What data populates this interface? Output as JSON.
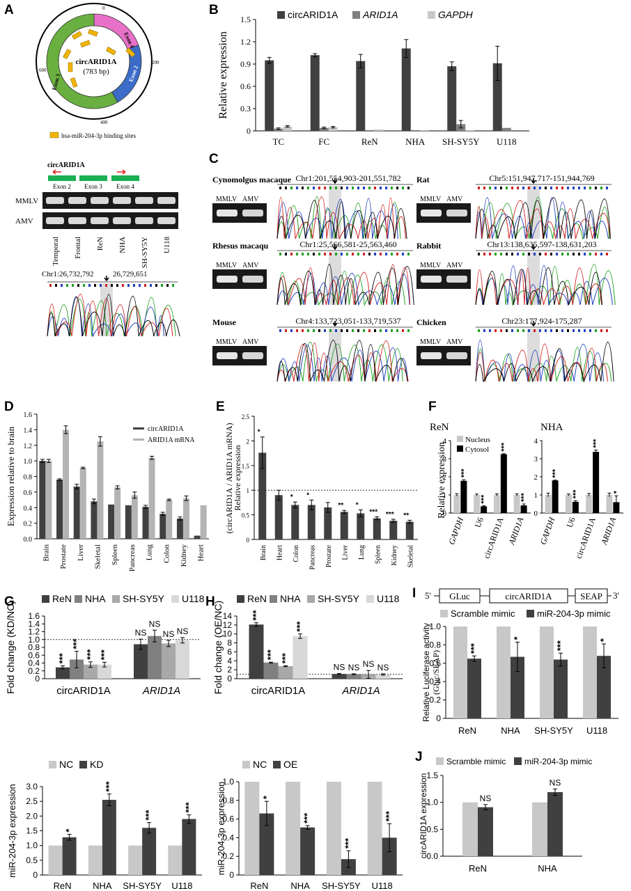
{
  "panels": {
    "A": {
      "letter": "A",
      "circle": {
        "title": "circARID1A",
        "subtitle": "(783 bp)",
        "ticks": [
          "0",
          "200",
          "400",
          "600"
        ],
        "exons": [
          "Exon 2",
          "Exon 3",
          "Exon 4"
        ],
        "legend": "hsa-miR-204-3p binding sites"
      },
      "gel": {
        "title": "circARID1A",
        "exons": [
          "Exon 2",
          "Exon 3",
          "Exon 4"
        ],
        "rows": [
          "MMLV",
          "AMV"
        ],
        "lanes": [
          "Temporal",
          "Frontal",
          "ReN",
          "NHA",
          "SH-SY5Y",
          "U118"
        ]
      },
      "chrom": {
        "label": "Chr1:26,732,792",
        "label2": "26,729,651"
      }
    },
    "B": {
      "letter": "B"
    },
    "C": {
      "letter": "C",
      "species": [
        {
          "name": "Cynomolgus macaque",
          "coords": "Chr1:201,554,903-201,551,782"
        },
        {
          "name": "Rhesus macaqu",
          "coords": "Chr1:25,566,581-25,563,460"
        },
        {
          "name": "Mouse",
          "coords": "Chr4:133,723,051-133,719,537"
        },
        {
          "name": "Rat",
          "coords": "Chr5:151,947,717-151,944,769"
        },
        {
          "name": "Rabbit",
          "coords": "Chr13:138,635,597-138,631,203"
        },
        {
          "name": "Chicken",
          "coords": "Chr23:177,924-175,287"
        }
      ],
      "gel_labels": [
        "MMLV",
        "AMV"
      ]
    },
    "D": {
      "letter": "D"
    },
    "E": {
      "letter": "E"
    },
    "F": {
      "letter": "F"
    },
    "G": {
      "letter": "G"
    },
    "H": {
      "letter": "H"
    },
    "I": {
      "letter": "I",
      "construct": [
        "5'",
        "GLuc",
        "circARID1A",
        "SEAP",
        "3'"
      ]
    },
    "J": {
      "letter": "J"
    }
  },
  "colors": {
    "dark": "#404040",
    "mid": "#808080",
    "light": "#c8c8c8",
    "black": "#000000"
  },
  "chart_data": [
    {
      "id": "B",
      "type": "bar",
      "categories": [
        "TC",
        "FC",
        "ReN",
        "NHA",
        "SH-SY5Y",
        "U118"
      ],
      "series": [
        {
          "name": "circARID1A",
          "values": [
            0.95,
            1.02,
            0.94,
            1.11,
            0.87,
            0.91
          ],
          "err": [
            0.04,
            0.02,
            0.09,
            0.12,
            0.06,
            0.23
          ],
          "color": "#404040"
        },
        {
          "name": "ARID1A",
          "values": [
            0.03,
            0.04,
            0.01,
            0.01,
            0.09,
            0.04
          ],
          "err": [
            0.01,
            0.01,
            0.0,
            0.0,
            0.05,
            0.0
          ],
          "color": "#808080",
          "italic": true
        },
        {
          "name": "GAPDH",
          "values": [
            0.06,
            0.05,
            0.02,
            0.01,
            0.01,
            0.0
          ],
          "err": [
            0.01,
            0.01,
            0.0,
            0.0,
            0.0,
            0.0
          ],
          "color": "#c8c8c8",
          "italic": true
        }
      ],
      "ylabel": "Relative expression",
      "ylim": [
        0,
        1.5
      ],
      "yticks": [
        "0",
        "0.3",
        "0.6",
        "0.9",
        "1.2",
        "1.5"
      ],
      "legend": "top"
    },
    {
      "id": "D",
      "type": "bar",
      "categories": [
        "Brain",
        "Prostate",
        "Liver",
        "Skeletal",
        "Spleen",
        "Pancreas",
        "Lung",
        "Colon",
        "Kidney",
        "Heart"
      ],
      "series": [
        {
          "name": "circARID1A",
          "values": [
            1.0,
            0.76,
            0.67,
            0.48,
            0.44,
            0.43,
            0.41,
            0.32,
            0.26,
            0.04
          ],
          "err": [
            0.02,
            0.01,
            0.03,
            0.03,
            0.0,
            0.0,
            0.02,
            0.02,
            0.02,
            0.0
          ],
          "color": "#404040"
        },
        {
          "name": "ARID1A mRNA",
          "values": [
            1.0,
            1.4,
            0.91,
            1.25,
            0.66,
            0.56,
            1.04,
            0.5,
            0.52,
            0.43
          ],
          "err": [
            0.02,
            0.05,
            0.01,
            0.06,
            0.02,
            0.04,
            0.02,
            0.01,
            0.03,
            0.0
          ],
          "color": "#b4b4b4"
        }
      ],
      "ylabel": "Expression relative to brain",
      "ylim": [
        0,
        1.6
      ],
      "yticks": [
        "0.0",
        "0.2",
        "0.4",
        "0.6",
        "0.8",
        "1.0",
        "1.2",
        "1.4",
        "1.6"
      ],
      "legend": "top-right"
    },
    {
      "id": "E",
      "type": "bar",
      "categories": [
        "Brain",
        "Heart",
        "Colon",
        "Pancreas",
        "Prostate",
        "Liver",
        "Lung",
        "Spleen",
        "Kidney",
        "Skeletal"
      ],
      "series": [
        {
          "name": "",
          "values": [
            1.76,
            0.9,
            0.7,
            0.7,
            0.65,
            0.56,
            0.53,
            0.43,
            0.38,
            0.36
          ],
          "err": [
            0.32,
            0.1,
            0.06,
            0.1,
            0.1,
            0.03,
            0.07,
            0.03,
            0.03,
            0.03
          ],
          "color": "#404040"
        }
      ],
      "stars": [
        "*",
        "",
        "*",
        "*",
        "",
        "**",
        "*",
        "***",
        "***",
        "**"
      ],
      "ylabel": "Relative expression",
      "ylabel2": "(circARID1A / ARID1A mRNA)",
      "ylim": [
        0,
        2.5
      ],
      "yticks": [
        "0",
        "0.5",
        "1",
        "1.5",
        "2",
        "2.5"
      ],
      "refline": 1.0
    },
    {
      "id": "F",
      "type": "bar",
      "categories": [
        "GAPDH",
        "U6",
        "circARID1A",
        "ARID1A"
      ],
      "groups": [
        {
          "name": "ReN",
          "nucleus": [
            1.0,
            1.0,
            1.0,
            1.0
          ],
          "cytosol": [
            1.78,
            0.37,
            3.25,
            0.42
          ],
          "nerr": [
            0.07,
            0.05,
            0.06,
            0.06
          ],
          "cerr": [
            0.06,
            0.03,
            0.03,
            0.08
          ],
          "stars": [
            "***",
            "***",
            "***",
            "***"
          ]
        },
        {
          "name": "NHA",
          "nucleus": [
            1.0,
            1.0,
            1.0,
            1.0
          ],
          "cytosol": [
            1.8,
            0.62,
            3.38,
            0.6
          ],
          "nerr": [
            0.1,
            0.05,
            0.08,
            0.1
          ],
          "cerr": [
            0.02,
            0.06,
            0.1,
            0.35
          ],
          "stars": [
            "***",
            "***",
            "***",
            "*"
          ]
        }
      ],
      "series_names": [
        "Nucleus",
        "Cytosol"
      ],
      "ylabel": "Relative expression",
      "ylim": [
        0,
        4
      ],
      "yticks": [
        "0",
        "1",
        "2",
        "3",
        "4"
      ]
    },
    {
      "id": "G1",
      "type": "bar",
      "categories": [
        "circARID1A",
        "ARID1A"
      ],
      "series": [
        {
          "name": "ReN",
          "values": [
            0.29,
            0.88
          ],
          "err": [
            0.04,
            0.13
          ],
          "color": "#404040"
        },
        {
          "name": "NHA",
          "values": [
            0.49,
            1.09
          ],
          "err": [
            0.21,
            0.15
          ],
          "color": "#808080"
        },
        {
          "name": "SH-SY5Y",
          "values": [
            0.36,
            0.9
          ],
          "err": [
            0.07,
            0.08
          ],
          "color": "#a8a8a8"
        },
        {
          "name": "U118",
          "values": [
            0.36,
            0.98
          ],
          "err": [
            0.06,
            0.07
          ],
          "color": "#d8d8d8"
        }
      ],
      "stars": [
        [
          "***",
          "***",
          "***",
          "***"
        ],
        [
          "NS",
          "NS",
          "NS",
          "NS"
        ]
      ],
      "ylabel": "Fold change (KD/NC)",
      "ylim": [
        0,
        1.6
      ],
      "yticks": [
        "0",
        "0.2",
        "0.4",
        "0.6",
        "0.8",
        "1.0",
        "1.2",
        "1.4",
        "1.6"
      ],
      "refline": 1.0
    },
    {
      "id": "H1",
      "type": "bar",
      "categories": [
        "circARID1A",
        "ARID1A"
      ],
      "series": [
        {
          "name": "ReN",
          "values": [
            12.1,
            1.05
          ],
          "err": [
            0.4,
            0.1
          ],
          "color": "#404040"
        },
        {
          "name": "NHA",
          "values": [
            3.6,
            1.0
          ],
          "err": [
            0.1,
            0.1
          ],
          "color": "#808080"
        },
        {
          "name": "SH-SY5Y",
          "values": [
            2.8,
            0.95
          ],
          "err": [
            0.1,
            0.9
          ],
          "color": "#a8a8a8"
        },
        {
          "name": "U118",
          "values": [
            9.5,
            0.95
          ],
          "err": [
            0.5,
            0.15
          ],
          "color": "#d8d8d8"
        }
      ],
      "stars": [
        [
          "***",
          "***",
          "***",
          "***"
        ],
        [
          "NS",
          "NS",
          "NS",
          "NS"
        ]
      ],
      "ylabel": "Fold change (OE/NC)",
      "ylim": [
        0,
        14
      ],
      "yticks": [
        "0",
        "2",
        "4",
        "6",
        "8",
        "10",
        "12",
        "14"
      ],
      "refline": 1.0
    },
    {
      "id": "I",
      "type": "bar",
      "categories": [
        "ReN",
        "NHA",
        "SH-SY5Y",
        "U118"
      ],
      "series": [
        {
          "name": "Scramble mimic",
          "values": [
            1.0,
            1.0,
            1.0,
            1.0
          ],
          "err": [
            0,
            0,
            0,
            0
          ],
          "color": "#c8c8c8"
        },
        {
          "name": "miR-204-3p mimic",
          "values": [
            0.65,
            0.67,
            0.64,
            0.68
          ],
          "err": [
            0.03,
            0.16,
            0.07,
            0.13
          ],
          "color": "#404040"
        }
      ],
      "stars": [
        "***",
        "*",
        "***",
        "*"
      ],
      "ylabel": "Relative Luciferase activity",
      "ylabel2": "(Gluc/SEAP)",
      "ylim": [
        0,
        1.0
      ],
      "yticks": [
        "0",
        "0.2",
        "0.4",
        "0.6",
        "0.8",
        "1.0"
      ]
    },
    {
      "id": "G2",
      "type": "bar",
      "categories": [
        "ReN",
        "NHA",
        "SH-SY5Y",
        "U118"
      ],
      "series": [
        {
          "name": "NC",
          "values": [
            1.0,
            1.0,
            1.0,
            1.0
          ],
          "err": [
            0,
            0,
            0,
            0
          ],
          "color": "#c8c8c8"
        },
        {
          "name": "KD",
          "values": [
            1.28,
            2.55,
            1.6,
            1.9
          ],
          "err": [
            0.1,
            0.2,
            0.18,
            0.14
          ],
          "color": "#404040"
        }
      ],
      "stars": [
        "*",
        "***",
        "***",
        "***"
      ],
      "ylabel": "miR-204-3p expression",
      "ylim": [
        0,
        3.0
      ],
      "yticks": [
        "0",
        "0.5",
        "1.0",
        "1.5",
        "2.0",
        "2.5",
        "3.0"
      ]
    },
    {
      "id": "H2",
      "type": "bar",
      "categories": [
        "ReN",
        "NHA",
        "SH-SY5Y",
        "U118"
      ],
      "series": [
        {
          "name": "NC",
          "values": [
            1.0,
            1.0,
            1.0,
            1.0
          ],
          "err": [
            0,
            0,
            0,
            0
          ],
          "color": "#c8c8c8"
        },
        {
          "name": "OE",
          "values": [
            0.66,
            0.51,
            0.17,
            0.4
          ],
          "err": [
            0.13,
            0.02,
            0.09,
            0.15
          ],
          "color": "#404040"
        }
      ],
      "stars": [
        "*",
        "***",
        "***",
        "***"
      ],
      "ylabel": "miR-204-3p expression",
      "ylim": [
        0,
        1.0
      ],
      "yticks": [
        "0",
        "0.2",
        "0.4",
        "0.6",
        "0.8",
        "1.0"
      ]
    },
    {
      "id": "J",
      "type": "bar",
      "categories": [
        "ReN",
        "NHA"
      ],
      "series": [
        {
          "name": "Scramble mimic",
          "values": [
            1.0,
            1.0
          ],
          "err": [
            0,
            0
          ],
          "color": "#c8c8c8"
        },
        {
          "name": "miR-204-3p mimic",
          "values": [
            0.91,
            1.19
          ],
          "err": [
            0.05,
            0.06
          ],
          "color": "#404040"
        }
      ],
      "stars": [
        "NS",
        "NS"
      ],
      "ylabel": "circARID1A expression",
      "ylim": [
        0,
        1.5
      ],
      "yticks": [
        "0.0",
        "0.5",
        "1.0",
        "1.5"
      ]
    }
  ]
}
